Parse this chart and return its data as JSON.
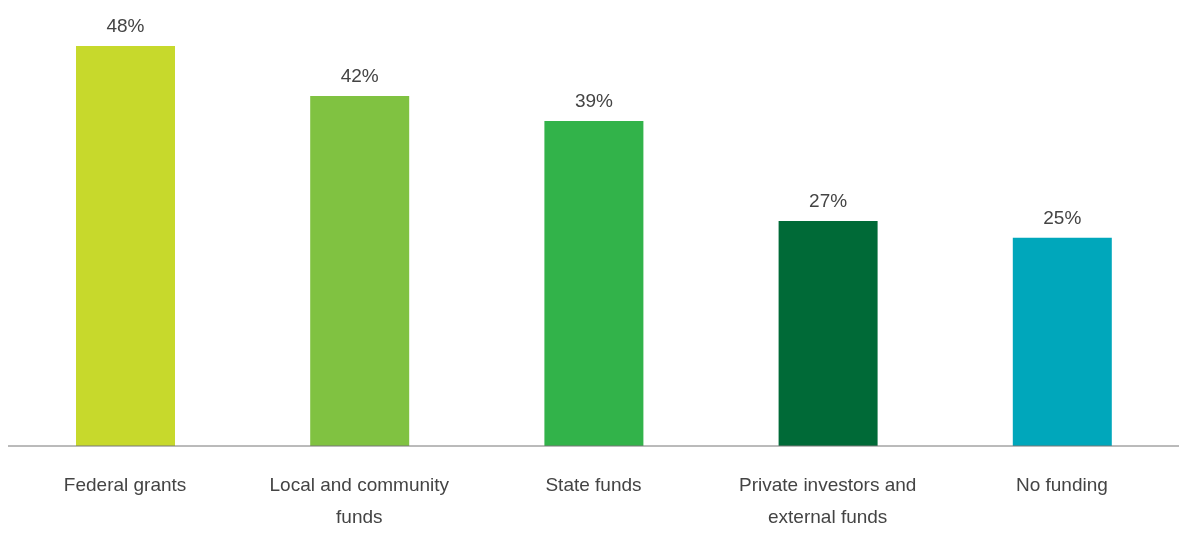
{
  "chart_data": {
    "type": "bar",
    "categories": [
      "Federal grants",
      "Local and community funds",
      "State funds",
      "Private investors and external funds",
      "No funding"
    ],
    "values": [
      48,
      42,
      39,
      27,
      25
    ],
    "colors": [
      "#c7d92c",
      "#80c241",
      "#32b34a",
      "#006a37",
      "#00a7bb"
    ],
    "value_labels": [
      "48%",
      "42%",
      "39%",
      "27%",
      "25%"
    ]
  }
}
